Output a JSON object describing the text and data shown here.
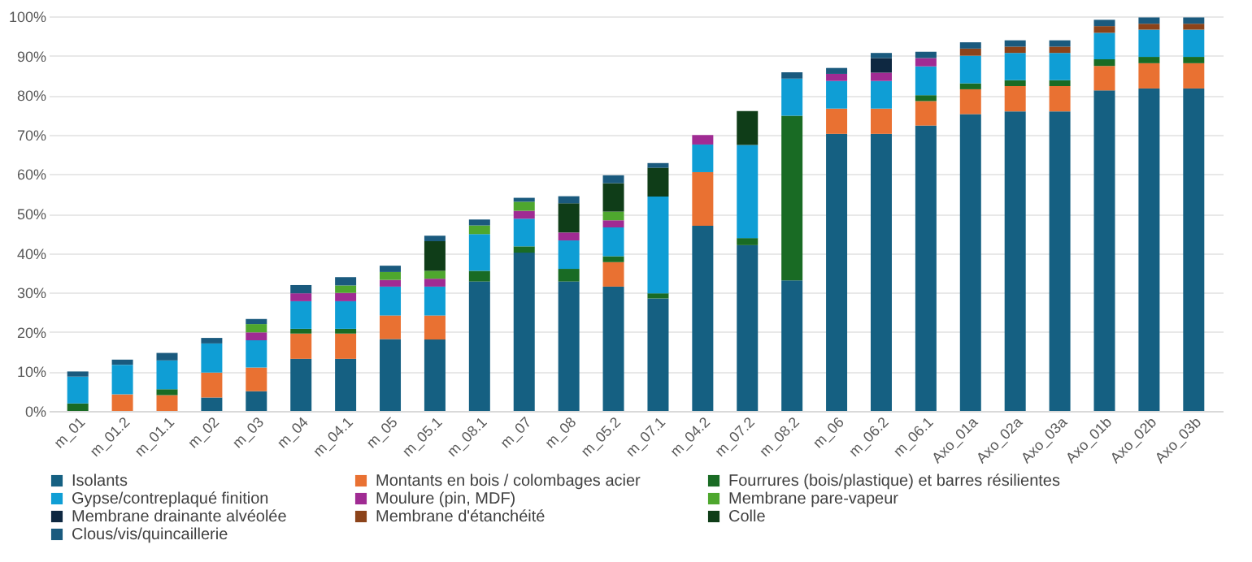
{
  "chart_data": {
    "type": "bar",
    "stacked": true,
    "categories": [
      "m_01",
      "m_01.2",
      "m_01.1",
      "m_02",
      "m_03",
      "m_04",
      "m_04.1",
      "m_05",
      "m_05.1",
      "m_08.1",
      "m_07",
      "m_08",
      "m_05.2",
      "m_07.1",
      "m_04.2",
      "m_07.2",
      "m_08.2",
      "m_06",
      "m_06.2",
      "m_06.1",
      "Axo_01a",
      "Axo_02a",
      "Axo_03a",
      "Axo_01b",
      "Axo_02b",
      "Axo_03b"
    ],
    "series": [
      {
        "name": "Isolants",
        "color": "#156082",
        "values": [
          null,
          null,
          null,
          3.4,
          5,
          13.2,
          13.2,
          18.2,
          18.1,
          32.8,
          40.1,
          32.8,
          31.5,
          28.5,
          46.9,
          42,
          33.1,
          70.2,
          70.2,
          72.3,
          75.2,
          75.9,
          75.9,
          81.2,
          81.7,
          81.7
        ]
      },
      {
        "name": "Montants en bois / colombages acier",
        "color": "#e97132",
        "values": [
          null,
          4.2,
          4,
          6.3,
          6,
          6.4,
          6.4,
          6,
          6.1,
          null,
          null,
          null,
          6.2,
          null,
          13.6,
          null,
          null,
          6.4,
          6.4,
          6.2,
          6.3,
          6.4,
          6.4,
          6.2,
          6.4,
          6.4
        ]
      },
      {
        "name": "Fourrures (bois/plastique) et barres résilientes",
        "color": "#196b24",
        "values": [
          1.9,
          null,
          1.5,
          null,
          null,
          1.2,
          1.2,
          null,
          null,
          2.7,
          1.6,
          3.2,
          1.5,
          1.3,
          null,
          1.8,
          41.7,
          null,
          null,
          1.5,
          1.5,
          1.5,
          1.5,
          1.7,
          1.6,
          1.6
        ]
      },
      {
        "name": "Gypse/contreplaqué finition",
        "color": "#0f9ed5",
        "values": [
          6.8,
          7.5,
          7.3,
          7.4,
          6.9,
          7,
          7,
          7.3,
          7.3,
          9.3,
          7,
          7.2,
          7.3,
          24.5,
          7,
          23.6,
          9.4,
          7,
          7,
          7.3,
          7,
          6.9,
          6.9,
          6.7,
          6.9,
          6.9
        ]
      },
      {
        "name": "Moulure (pin, MDF)",
        "color": "#a02b93",
        "values": [
          null,
          null,
          null,
          null,
          2,
          2,
          2.1,
          1.7,
          2,
          null,
          2,
          2,
          1.8,
          null,
          2.4,
          null,
          null,
          1.8,
          2.1,
          2.1,
          null,
          null,
          null,
          null,
          null,
          null
        ]
      },
      {
        "name": "Membrane pare-vapeur",
        "color": "#4ea72e",
        "values": [
          null,
          null,
          null,
          null,
          2.1,
          null,
          1.9,
          2,
          2,
          2.2,
          2.3,
          null,
          2.2,
          null,
          null,
          null,
          null,
          null,
          null,
          null,
          null,
          null,
          null,
          null,
          null,
          null
        ]
      },
      {
        "name": "Membrane drainante alvéolée",
        "color": "#0e2841",
        "values": [
          null,
          null,
          null,
          null,
          null,
          null,
          null,
          null,
          null,
          null,
          null,
          null,
          null,
          null,
          null,
          null,
          null,
          null,
          3.7,
          null,
          null,
          null,
          null,
          null,
          null,
          null
        ]
      },
      {
        "name": "Membrane d'étanchéité",
        "color": "#8c431a",
        "values": [
          null,
          null,
          null,
          null,
          null,
          null,
          null,
          null,
          null,
          null,
          null,
          null,
          null,
          null,
          null,
          null,
          null,
          null,
          null,
          null,
          1.8,
          1.6,
          1.6,
          1.7,
          1.5,
          1.5
        ]
      },
      {
        "name": "Colle",
        "color": "#0f3d18",
        "values": [
          null,
          null,
          null,
          null,
          null,
          null,
          null,
          null,
          7.5,
          null,
          null,
          7.4,
          7.2,
          7.3,
          null,
          8.6,
          null,
          null,
          null,
          null,
          null,
          null,
          null,
          null,
          null,
          null
        ]
      },
      {
        "name": "Clous/vis/quincaillerie",
        "color": "#1a5a7e",
        "values": [
          1.3,
          1.3,
          1.9,
          1.4,
          1.3,
          2.1,
          2.1,
          1.6,
          1.4,
          1.5,
          1,
          1.8,
          2,
          1.2,
          null,
          null,
          1.6,
          1.5,
          1.3,
          1.6,
          1.6,
          1.6,
          1.6,
          1.6,
          1.6,
          1.6
        ]
      }
    ],
    "ylim": [
      0,
      100
    ],
    "yticks": [
      {
        "value": 0,
        "label": "0%"
      },
      {
        "value": 10,
        "label": "10%"
      },
      {
        "value": 20,
        "label": "20%"
      },
      {
        "value": 30,
        "label": "30%"
      },
      {
        "value": 40,
        "label": "40%"
      },
      {
        "value": 50,
        "label": "50%"
      },
      {
        "value": 60,
        "label": "60%"
      },
      {
        "value": 70,
        "label": "70%"
      },
      {
        "value": 80,
        "label": "80%"
      },
      {
        "value": 90,
        "label": "90%"
      },
      {
        "value": 100,
        "label": "100%"
      }
    ],
    "grid": "y",
    "legend": "bottom"
  }
}
